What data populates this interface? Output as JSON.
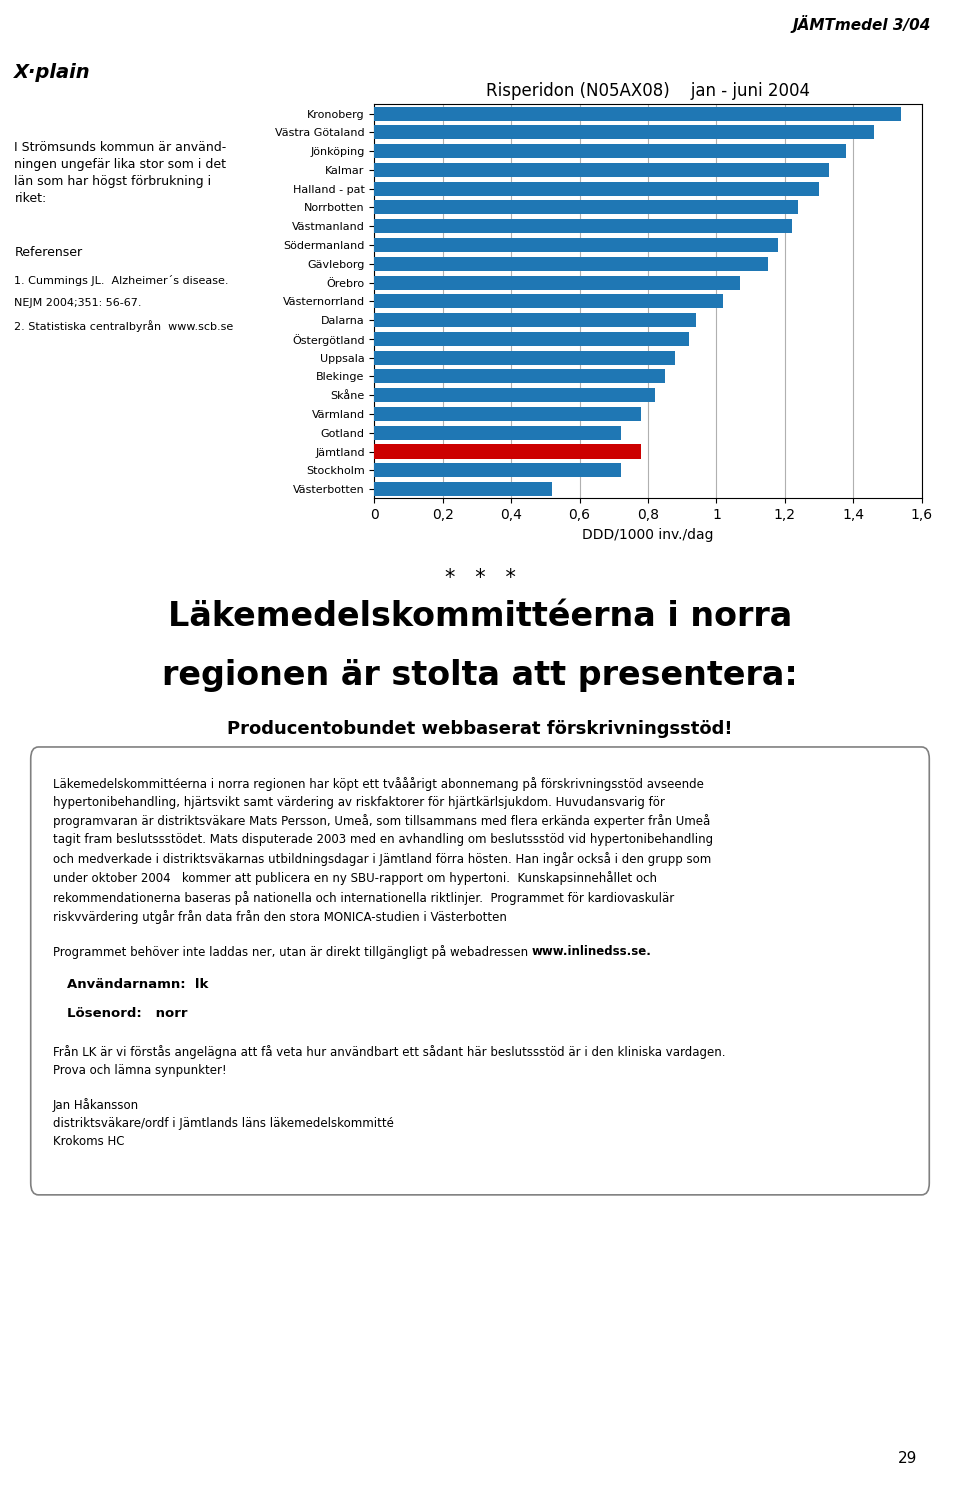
{
  "chart_data": {
    "type": "bar",
    "orientation": "horizontal",
    "title": "Risperidon (N05AX08)    jan - juni 2004",
    "xlabel": "DDD/1000 inv./dag",
    "categories": [
      "Kronoberg",
      "Västra Götaland",
      "Jönköping",
      "Kalmar",
      "Halland - pat",
      "Norrbotten",
      "Västmanland",
      "Södermanland",
      "Gävleborg",
      "Örebro",
      "Västernorrland",
      "Dalarna",
      "Östergötland",
      "Uppsala",
      "Blekinge",
      "Skåne",
      "Värmland",
      "Gotland",
      "Jämtland",
      "Stockholm",
      "Västerbotten"
    ],
    "values": [
      1.54,
      1.46,
      1.38,
      1.33,
      1.3,
      1.24,
      1.22,
      1.18,
      1.15,
      1.07,
      1.02,
      0.94,
      0.92,
      0.88,
      0.85,
      0.82,
      0.78,
      0.72,
      0.78,
      0.72,
      0.52
    ],
    "colors": [
      "#1f77b4",
      "#1f77b4",
      "#1f77b4",
      "#1f77b4",
      "#1f77b4",
      "#1f77b4",
      "#1f77b4",
      "#1f77b4",
      "#1f77b4",
      "#1f77b4",
      "#1f77b4",
      "#1f77b4",
      "#1f77b4",
      "#1f77b4",
      "#1f77b4",
      "#1f77b4",
      "#1f77b4",
      "#1f77b4",
      "#CC0000",
      "#1f77b4",
      "#1f77b4"
    ],
    "xlim": [
      0,
      1.6
    ],
    "xticks": [
      0,
      {
        "value": 0.2,
        "label": "0,2"
      },
      {
        "value": 0.4,
        "label": "0,4"
      },
      {
        "value": 0.6,
        "label": "0,6"
      },
      {
        "value": 0.8,
        "label": "0,8"
      },
      1,
      {
        "value": 1.2,
        "label": "1,2"
      },
      {
        "value": 1.4,
        "label": "1,4"
      },
      {
        "value": 1.6,
        "label": "1,6"
      }
    ],
    "grid": true,
    "annotations": [
      "JÄMTmedel 3/04",
      "X·plain",
      "I Strömsunds kommun är använd-\nningen ungefär lika stor som i det\nlän som har högst förbrukning i\nriket:",
      "Referenser",
      "1. Cummings JL.  Alzheimer´s disease.",
      "NEJM 2004;351: 56-67.",
      "2. Statistiska centralbyrån  www.scb.se",
      "*   *   *",
      "Läkemedelskommittéerna i norra",
      "regionen är stolta att presentera:",
      "Producentobundet webbaserat förskrivningsstöd!",
      "Läkemedelskommittéerna i norra regionen har köpt ett tvååårigt abonnemang på förskrivningsstöd avseende\nhypertonibehandling, hjärtsvikt samt värdering av riskfaktorer för hjärtkärlsjukdom. Huvudansvarig för\nprogramvaran är distriktsväkare Mats Persson, Umeå, som tillsammans med flera erkända experter från Umeå\ntagit fram beslutssstödet. Mats disputerade 2003 med en avhandling om beslutssstöd vid hypertonibehandling\noch medverkade i distriktsväkarnas utbildningsdagar i Jämtland förra hösten. Han ingår också i den grupp som\nunder oktober 2004   kommer att publicera en ny SBU-rapport om hypertoni.  Kunskapsinnehållet och\nrekommendationerna baseras på nationella och internationella riktlinjer.  Programmet för kardiovaskulär\nriskvvärdering utgår från data från den stora MONICA-studien i Västerbotten",
      "Programmet behöver inte laddas ner, utan är direkt tillgängligt på webadressen ",
      "www.inlinedss.se.",
      "Användarnamn:  lk",
      "Lösenord:   norr",
      "Från LK är vi förstås angelägna att få veta hur användbart ett sådant här beslutssstöd är i den kliniska vardagen.\nProva och lämna synpunkter!",
      "Jan Håkansson\ndistriktsväkare/ordf i Jämtlands läns läkemedelskommitté\nKrokoms HC",
      "29"
    ]
  }
}
